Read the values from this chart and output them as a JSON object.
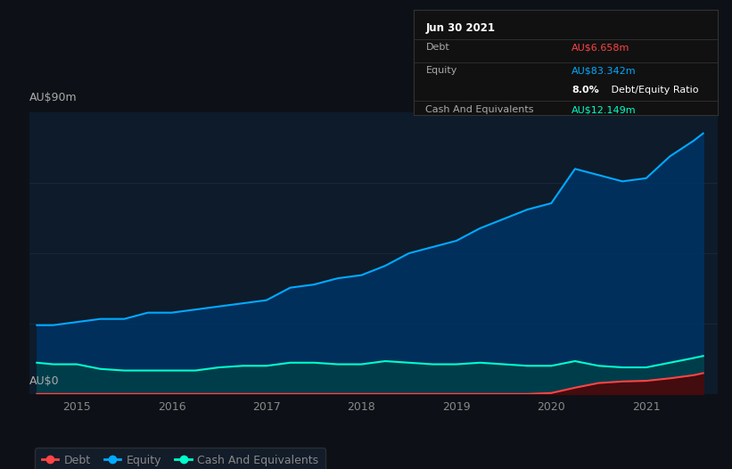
{
  "bg_color": "#0d1117",
  "plot_bg_color": "#0d1b2a",
  "title_label": "AU$90m",
  "zero_label": "AU$0",
  "x_ticks": [
    2015,
    2016,
    2017,
    2018,
    2019,
    2020,
    2021
  ],
  "ylim": [
    0,
    90
  ],
  "xlim_start": 2014.5,
  "xlim_end": 2021.75,
  "tooltip": {
    "date": "Jun 30 2021",
    "debt_label": "Debt",
    "debt_value": "AU$6.658m",
    "equity_label": "Equity",
    "equity_value": "AU$83.342m",
    "ratio_bold": "8.0%",
    "ratio_rest": " Debt/Equity Ratio",
    "cash_label": "Cash And Equivalents",
    "cash_value": "AU$12.149m",
    "bg": "#111111",
    "border": "#333333",
    "debt_color": "#ff4444",
    "equity_color": "#00aaff",
    "cash_color": "#00ffcc",
    "ratio_color": "#ffffff",
    "text_color": "#aaaaaa",
    "title_color": "#ffffff"
  },
  "equity": {
    "x": [
      2014.58,
      2014.75,
      2015.0,
      2015.25,
      2015.5,
      2015.75,
      2016.0,
      2016.25,
      2016.5,
      2016.75,
      2017.0,
      2017.25,
      2017.5,
      2017.75,
      2018.0,
      2018.25,
      2018.5,
      2018.75,
      2019.0,
      2019.25,
      2019.5,
      2019.75,
      2020.0,
      2020.25,
      2020.5,
      2020.75,
      2021.0,
      2021.25,
      2021.5,
      2021.6
    ],
    "y": [
      22,
      22,
      23,
      24,
      24,
      26,
      26,
      27,
      28,
      29,
      30,
      34,
      35,
      37,
      38,
      41,
      45,
      47,
      49,
      53,
      56,
      59,
      61,
      72,
      70,
      68,
      69,
      76,
      81,
      83.342
    ],
    "color": "#00aaff",
    "fill_color": "#003366",
    "fill_alpha": 0.85
  },
  "cash": {
    "x": [
      2014.58,
      2014.75,
      2015.0,
      2015.25,
      2015.5,
      2015.75,
      2016.0,
      2016.25,
      2016.5,
      2016.75,
      2017.0,
      2017.25,
      2017.5,
      2017.75,
      2018.0,
      2018.25,
      2018.5,
      2018.75,
      2019.0,
      2019.25,
      2019.5,
      2019.75,
      2020.0,
      2020.25,
      2020.5,
      2020.75,
      2021.0,
      2021.25,
      2021.5,
      2021.6
    ],
    "y": [
      10,
      9.5,
      9.5,
      8.0,
      7.5,
      7.5,
      7.5,
      7.5,
      8.5,
      9.0,
      9.0,
      10.0,
      10.0,
      9.5,
      9.5,
      10.5,
      10.0,
      9.5,
      9.5,
      10.0,
      9.5,
      9.0,
      9.0,
      10.5,
      9.0,
      8.5,
      8.5,
      10.0,
      11.5,
      12.149
    ],
    "color": "#00ffcc",
    "fill_color": "#004444",
    "fill_alpha": 0.7
  },
  "debt": {
    "x": [
      2014.58,
      2019.75,
      2020.0,
      2020.25,
      2020.5,
      2020.75,
      2021.0,
      2021.25,
      2021.5,
      2021.6
    ],
    "y": [
      0.0,
      0.0,
      0.3,
      2.0,
      3.5,
      4.0,
      4.2,
      5.0,
      6.0,
      6.658
    ],
    "color": "#ff4444",
    "fill_color": "#550000",
    "fill_alpha": 0.8
  },
  "legend": [
    {
      "label": "Debt",
      "color": "#ff4444"
    },
    {
      "label": "Equity",
      "color": "#00aaff"
    },
    {
      "label": "Cash And Equivalents",
      "color": "#00ffcc"
    }
  ],
  "gridline_color": "#1e2d3d",
  "gridline_alpha": 0.7,
  "axis_label_color": "#aaaaaa",
  "tick_color": "#888888"
}
